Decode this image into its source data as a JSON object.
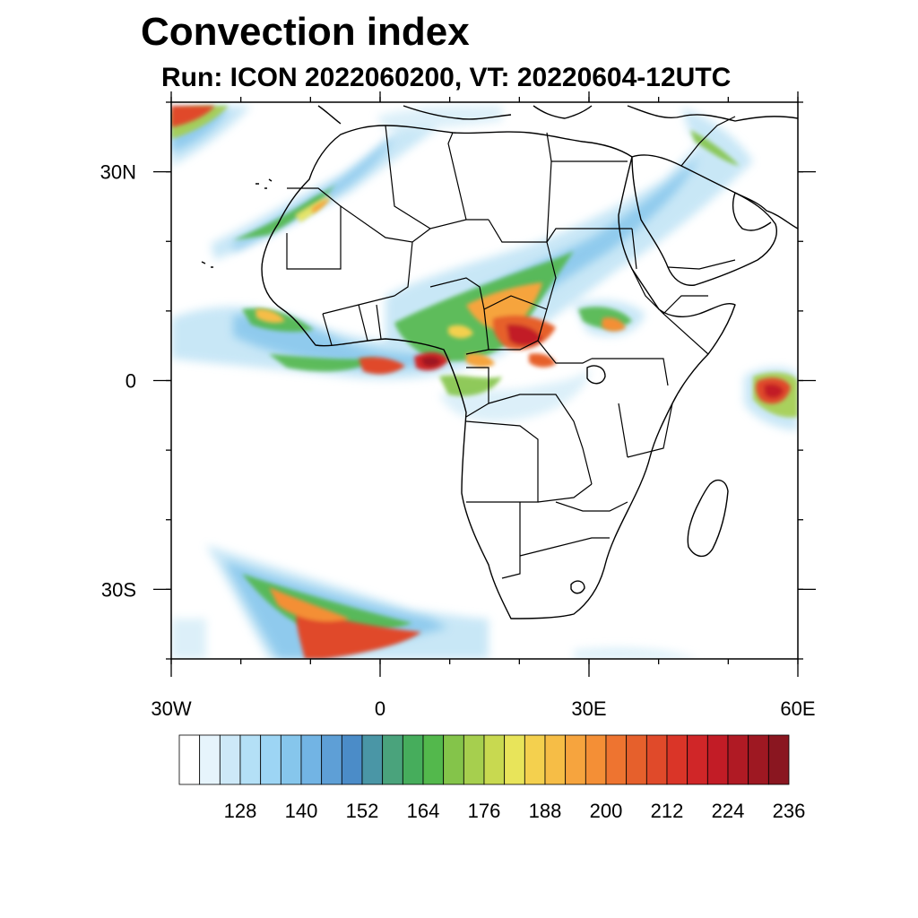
{
  "title": "Convection index",
  "subtitle": "Run: ICON 2022060200,  VT: 20220604-12UTC",
  "map": {
    "region": "Africa",
    "lon_range": [
      -30,
      60
    ],
    "lat_range": [
      -40,
      40
    ],
    "lon_ticks": [
      {
        "value": -30,
        "label": "30W"
      },
      {
        "value": 0,
        "label": "0"
      },
      {
        "value": 30,
        "label": "30E"
      },
      {
        "value": 60,
        "label": "60E"
      }
    ],
    "lat_ticks": [
      {
        "value": 30,
        "label": "30N"
      },
      {
        "value": 0,
        "label": "0"
      },
      {
        "value": -30,
        "label": "30S"
      }
    ]
  },
  "colorbar": {
    "levels": [
      120,
      124,
      128,
      132,
      136,
      140,
      144,
      148,
      152,
      156,
      160,
      164,
      168,
      172,
      176,
      180,
      184,
      188,
      192,
      196,
      200,
      204,
      208,
      212,
      216,
      220,
      224,
      228,
      232,
      236
    ],
    "labels": [
      "128",
      "140",
      "152",
      "164",
      "176",
      "188",
      "200",
      "212",
      "224",
      "236"
    ],
    "colors": [
      "#ffffff",
      "#e6f4fc",
      "#cde9f8",
      "#b4e0f6",
      "#9dd5f4",
      "#86c6ec",
      "#72b4e4",
      "#5e9fd6",
      "#4b8cc8",
      "#4a96a6",
      "#4aa37c",
      "#46ad5c",
      "#53b84c",
      "#84c44a",
      "#a6cf4e",
      "#c8d950",
      "#e8e45a",
      "#f4d04e",
      "#f6bd46",
      "#f6a43e",
      "#f48f36",
      "#ee7430",
      "#e6602c",
      "#e04a2a",
      "#da3528",
      "#d02628",
      "#c21c26",
      "#b01a24",
      "#9e1822",
      "#8a1620"
    ]
  }
}
